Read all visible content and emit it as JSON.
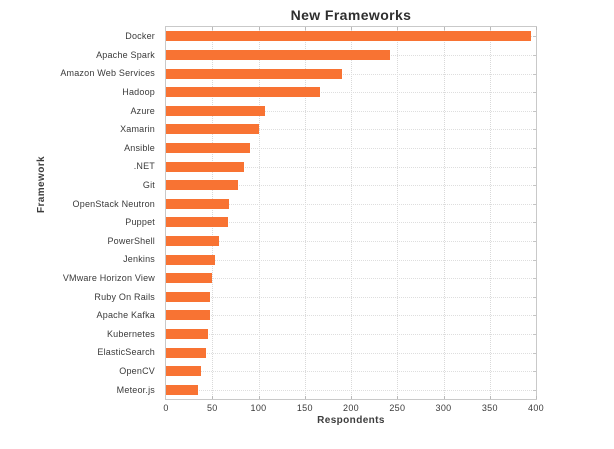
{
  "chart_data": {
    "type": "bar",
    "orientation": "horizontal",
    "title": "New Frameworks",
    "xlabel": "Respondents",
    "ylabel": "Framework",
    "categories": [
      "Docker",
      "Apache Spark",
      "Amazon Web Services",
      "Hadoop",
      "Azure",
      "Xamarin",
      "Ansible",
      ".NET",
      "Git",
      "OpenStack Neutron",
      "Puppet",
      "PowerShell",
      "Jenkins",
      "VMware Horizon View",
      "Ruby On Rails",
      "Apache Kafka",
      "Kubernetes",
      "ElasticSearch",
      "OpenCV",
      "Meteor.js"
    ],
    "values": [
      395,
      242,
      190,
      166,
      107,
      100,
      91,
      84,
      78,
      68,
      67,
      57,
      53,
      50,
      47,
      47,
      45,
      43,
      38,
      35
    ],
    "xlim": [
      0,
      400
    ],
    "xticks": [
      0,
      50,
      100,
      150,
      200,
      250,
      300,
      350,
      400
    ],
    "grid": "dotted",
    "legend": "none",
    "bar_color": "#f87333",
    "spine_color": "#c9c9c9",
    "grid_color": "#dedede",
    "text_color": "#3a3a3a"
  }
}
